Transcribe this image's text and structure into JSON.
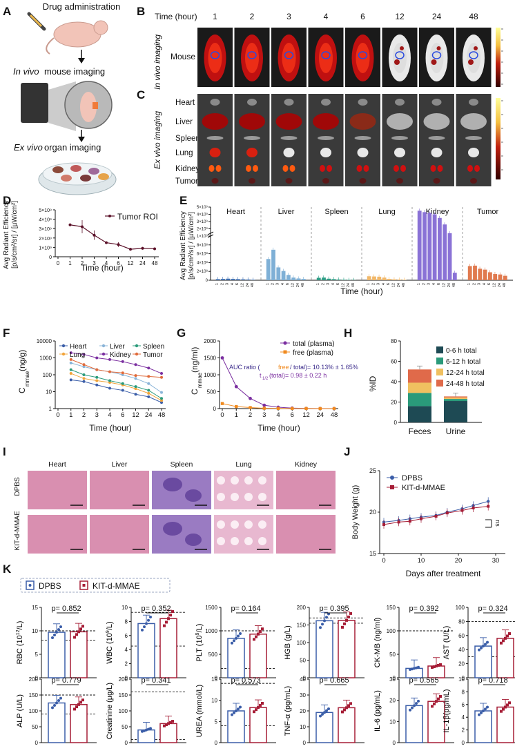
{
  "colors": {
    "dpbs": "#3a5da8",
    "kit": "#a61d36",
    "mouse_pink": "#f2c4b8",
    "tissue_pink": "#d98fb0",
    "spleen_purple": "#9a7bc2"
  },
  "panels": [
    "A",
    "B",
    "C",
    "D",
    "E",
    "F",
    "G",
    "H",
    "I",
    "J",
    "K"
  ],
  "panelA": {
    "title": "Drug administration",
    "invivo": "In vivo",
    "invivo_rest": " mouse imaging",
    "exvivo": "Ex vivo",
    "exvivo_rest": " organ imaging"
  },
  "panelB": {
    "time_label": "Time (hour)",
    "times": [
      "1",
      "2",
      "3",
      "4",
      "6",
      "12",
      "24",
      "48"
    ],
    "side_label": "In vivo  imaging",
    "row_label": "Mouse"
  },
  "panelC": {
    "side_label": "Ex vivo  imaging",
    "organs": [
      "Heart",
      "Liver",
      "Spleen",
      "Lung",
      "Kidney",
      "Tumor"
    ]
  },
  "chart_data": [
    {
      "id": "D",
      "type": "line",
      "legend": "Tumor ROI",
      "xlabel": "Time (hour)",
      "ylabel_line1": "Avg Radiant Efficiency",
      "ylabel_line2": "[p/s/cm²/sr] / [µW/cm²]",
      "x": [
        1,
        2,
        3,
        4,
        6,
        12,
        24,
        48
      ],
      "y": [
        3400000000.0,
        3200000000.0,
        2300000000.0,
        1500000000.0,
        1300000000.0,
        800000000.0,
        900000000.0,
        850000000.0
      ],
      "err": [
        150000000.0,
        700000000.0,
        500000000.0,
        50000000.0,
        250000000.0,
        150000000.0,
        150000000.0,
        50000000.0
      ],
      "ylim": [
        0,
        5000000000.0
      ],
      "yticks": [
        "0",
        "1×10⁹",
        "2×10⁹",
        "3×10⁹",
        "4×10⁹",
        "5×10⁹"
      ],
      "xticks": [
        "0",
        "1",
        "2",
        "3",
        "4",
        "6",
        "12",
        "24",
        "48"
      ]
    },
    {
      "id": "E",
      "type": "bar",
      "xlabel": "Time (hour)",
      "ylabel_line1": "Avg Radiant Efficiency",
      "ylabel_line2": "[p/s/cm²/sr] / [µW/cm²]",
      "groups": [
        "Heart",
        "Liver",
        "Spleen",
        "Lung",
        "Kidney",
        "Tumor"
      ],
      "group_colors": [
        "#3f6fb0",
        "#7fb0d6",
        "#2f9e86",
        "#f1b86a",
        "#8a72d6",
        "#e07a4f"
      ],
      "times": [
        "1",
        "2",
        "3",
        "4",
        "6",
        "12",
        "24",
        "48"
      ],
      "values": [
        [
          25000000.0,
          30000000.0,
          35000000.0,
          30000000.0,
          25000000.0,
          20000000.0,
          15000000.0,
          10000000.0
        ],
        [
          480000000.0,
          690000000.0,
          290000000.0,
          210000000.0,
          120000000.0,
          60000000.0,
          40000000.0,
          30000000.0
        ],
        [
          55000000.0,
          60000000.0,
          35000000.0,
          25000000.0,
          15000000.0,
          10000000.0,
          8000000.0,
          5000000.0
        ],
        [
          90000000.0,
          85000000.0,
          80000000.0,
          60000000.0,
          30000000.0,
          20000000.0,
          15000000.0,
          10000000.0
        ],
        [
          4500000000.0,
          4300000000.0,
          4200000000.0,
          4000000000.0,
          3500000000.0,
          2600000000.0,
          1400000000.0,
          170000000.0
        ],
        [
          320000000.0,
          330000000.0,
          260000000.0,
          240000000.0,
          180000000.0,
          140000000.0,
          130000000.0,
          100000000.0
        ]
      ],
      "yticks_lower": [
        "0",
        "2×10⁸",
        "4×10⁸",
        "6×10⁸",
        "8×10⁸",
        "1×10⁹"
      ],
      "yticks_upper": [
        "1×10⁹",
        "2×10⁹",
        "3×10⁹",
        "4×10⁹",
        "5×10⁹"
      ]
    },
    {
      "id": "F",
      "type": "line",
      "xlabel": "Time (hour)",
      "ylabel": "C",
      "ylabel_sub": "mmae",
      "ylabel_unit": " (ng/g)",
      "yscale": "log",
      "yticks": [
        "1",
        "10",
        "100",
        "1000",
        "10000"
      ],
      "xticks": [
        "0",
        "1",
        "2",
        "3",
        "4",
        "6",
        "12",
        "24",
        "48"
      ],
      "x": [
        1,
        2,
        3,
        4,
        6,
        12,
        24,
        48
      ],
      "series": [
        {
          "name": "Heart",
          "color": "#3a5da8",
          "marker": "circle",
          "values": [
            50,
            40,
            25,
            16,
            12,
            7,
            5,
            2.3
          ]
        },
        {
          "name": "Lung",
          "color": "#f1a43a",
          "marker": "triangle-down",
          "values": [
            120,
            60,
            45,
            35,
            25,
            15,
            8,
            3
          ]
        },
        {
          "name": "Liver",
          "color": "#8ab4d8",
          "marker": "diamond-small",
          "values": [
            500,
            300,
            200,
            150,
            100,
            60,
            30,
            9
          ]
        },
        {
          "name": "Kidney",
          "color": "#7b2fa0",
          "marker": "diamond",
          "values": [
            2000,
            1600,
            1000,
            800,
            600,
            400,
            250,
            120
          ]
        },
        {
          "name": "Spleen",
          "color": "#2a9a7a",
          "marker": "triangle",
          "values": [
            200,
            100,
            70,
            45,
            30,
            20,
            12,
            4
          ]
        },
        {
          "name": "Tumor",
          "color": "#e06a3a",
          "marker": "circle",
          "values": [
            800,
            400,
            200,
            150,
            130,
            90,
            80,
            70
          ]
        }
      ]
    },
    {
      "id": "G",
      "type": "line",
      "xlabel": "Time (hour)",
      "ylabel": "C",
      "ylabel_sub": "mmae",
      "ylabel_unit": " (ng/ml)",
      "ylim": [
        0,
        2000
      ],
      "yticks": [
        "0",
        "500",
        "1000",
        "1500",
        "2000"
      ],
      "xticks": [
        "0",
        "1",
        "2",
        "3",
        "4",
        "6",
        "12",
        "24",
        "48"
      ],
      "x": [
        0,
        1,
        2,
        3,
        4,
        6,
        12,
        24,
        48
      ],
      "series": [
        {
          "name": "total (plasma)",
          "color": "#7b2fa0",
          "values": [
            1500,
            650,
            300,
            100,
            40,
            15,
            5,
            3,
            2
          ]
        },
        {
          "name": "free (plasma)",
          "color": "#f08a1e",
          "values": [
            150,
            60,
            30,
            10,
            5,
            3,
            2,
            1,
            1
          ]
        }
      ],
      "auc_prefix": "AUC ratio (",
      "auc_free": "free",
      "auc_mid": "/ total)= 10.13% ± 1.65%",
      "thalf": "t",
      "thalf_sub": "1/2",
      "thalf_rest": " (total)= 0.98 ± 0.22 h"
    },
    {
      "id": "H",
      "type": "bar",
      "stacked": true,
      "ylabel": "%ID",
      "categories": [
        "Feces",
        "Urine"
      ],
      "ylim": [
        0,
        80
      ],
      "yticks": [
        "0",
        "20",
        "40",
        "60",
        "80"
      ],
      "series": [
        {
          "name": "0-6 h total",
          "color": "#1e4a54",
          "values": [
            16,
            21
          ]
        },
        {
          "name": "6-12 h total",
          "color": "#2a9a7a",
          "values": [
            13,
            2
          ]
        },
        {
          "name": "12-24 h total",
          "color": "#f0c060",
          "values": [
            10,
            1.5
          ]
        },
        {
          "name": "24-48 h total",
          "color": "#e06a4a",
          "values": [
            13,
            1
          ]
        }
      ]
    },
    {
      "id": "J",
      "type": "line",
      "xlabel": "Days after treatment",
      "ylabel": "Body Weight (g)",
      "ylim": [
        15,
        25
      ],
      "yticks": [
        "15",
        "20",
        "25"
      ],
      "xticks": [
        "0",
        "10",
        "20",
        "30"
      ],
      "ns": "ns",
      "series": [
        {
          "name": "DPBS",
          "color": "#3a5da8",
          "x": [
            0,
            4,
            7,
            10,
            14,
            17,
            21,
            24,
            28
          ],
          "values": [
            18.8,
            19.0,
            19.2,
            19.4,
            19.6,
            20.0,
            20.4,
            20.8,
            21.3
          ]
        },
        {
          "name": "KIT-d-MMAE",
          "color": "#a61d36",
          "x": [
            0,
            4,
            7,
            10,
            14,
            17,
            21,
            24,
            28
          ],
          "values": [
            18.5,
            18.8,
            18.9,
            19.2,
            19.5,
            19.9,
            20.2,
            20.5,
            20.7
          ]
        }
      ]
    },
    {
      "id": "K",
      "type": "bar",
      "legend": [
        "DPBS",
        "KIT-d-MMAE"
      ],
      "panels": [
        {
          "ylabel": "RBC (10",
          "ylabel_sup": "12",
          "ylabel_end": "/L)",
          "p": "p= 0.852",
          "ylim": [
            0,
            15
          ],
          "yticks": [
            "0",
            "5",
            "10",
            "15"
          ],
          "values": [
            9.7,
            9.8
          ],
          "refs": [
            10,
            8
          ]
        },
        {
          "ylabel": "WBC (10",
          "ylabel_sup": "9",
          "ylabel_end": "/L)",
          "p": "p= 0.352",
          "ylim": [
            0,
            10
          ],
          "yticks": [
            "0",
            "2",
            "4",
            "6",
            "8",
            "10"
          ],
          "values": [
            7.7,
            8.4
          ],
          "refs": [
            9.3,
            4.5
          ]
        },
        {
          "ylabel": "PLT (10",
          "ylabel_sup": "9",
          "ylabel_end": "/L)",
          "p": "p= 0.164",
          "ylim": [
            0,
            1500
          ],
          "yticks": [
            "0",
            "500",
            "1000",
            "1500"
          ],
          "values": [
            840,
            930
          ],
          "refs": [
            1000,
            200
          ]
        },
        {
          "ylabel": "HGB (g/L)",
          "p": "p= 0.395",
          "ylim": [
            0,
            200
          ],
          "yticks": [
            "0",
            "50",
            "100",
            "150",
            "200"
          ],
          "values": [
            162,
            163
          ],
          "refs": [
            170,
            155
          ]
        },
        {
          "ylabel": "CK-MB (ng/ml)",
          "p": "p= 0.392",
          "ylim": [
            0,
            150
          ],
          "yticks": [
            "0",
            "50",
            "100",
            "150"
          ],
          "values": [
            20,
            25
          ],
          "refs": [
            100
          ]
        },
        {
          "ylabel": "AST (U/L)",
          "p": "p= 0.324",
          "ylim": [
            0,
            100
          ],
          "yticks": [
            "0",
            "20",
            "40",
            "60",
            "80",
            "100"
          ],
          "values": [
            45,
            56
          ],
          "refs": [
            80,
            30
          ]
        },
        {
          "ylabel": "ALP (U/L)",
          "p": "p= 0.779",
          "ylim": [
            0,
            200
          ],
          "yticks": [
            "0",
            "50",
            "100",
            "150",
            "200"
          ],
          "values": [
            125,
            120
          ],
          "refs": [
            150,
            90
          ]
        },
        {
          "ylabel": "Creatinine (µg/L)",
          "p": "p= 0.341",
          "ylim": [
            0,
            200
          ],
          "yticks": [
            "0",
            "50",
            "100",
            "150",
            "200"
          ],
          "values": [
            40,
            60
          ],
          "refs": [
            160,
            10
          ]
        },
        {
          "ylabel": "UREA (mmol/L)",
          "p": "p= 0.573",
          "ylim": [
            0,
            15
          ],
          "yticks": [
            "0",
            "5",
            "10",
            "15"
          ],
          "values": [
            7.5,
            8.3
          ],
          "refs": [
            14,
            4
          ]
        },
        {
          "ylabel": "TNF-α (pg/mL)",
          "p": "p= 0.665",
          "ylim": [
            0,
            40
          ],
          "yticks": [
            "0",
            "10",
            "20",
            "30",
            "40"
          ],
          "values": [
            19,
            22
          ],
          "refs": []
        },
        {
          "ylabel": "IL-6 (pg/mL)",
          "p": "p= 0.565",
          "ylim": [
            0,
            30
          ],
          "yticks": [
            "0",
            "10",
            "20",
            "30"
          ],
          "values": [
            17.5,
            19.5
          ],
          "refs": []
        },
        {
          "ylabel": "IL-1β(pg/mL)",
          "p": "p= 0.718",
          "ylim": [
            0,
            10
          ],
          "yticks": [
            "0",
            "2",
            "4",
            "6",
            "8",
            "10"
          ],
          "values": [
            5,
            5.6
          ],
          "refs": []
        }
      ]
    }
  ],
  "panelI": {
    "tissues": [
      "Heart",
      "Liver",
      "Spleen",
      "Lung",
      "Kidney"
    ],
    "groups": [
      "DPBS",
      "KIT-d-MMAE"
    ]
  }
}
